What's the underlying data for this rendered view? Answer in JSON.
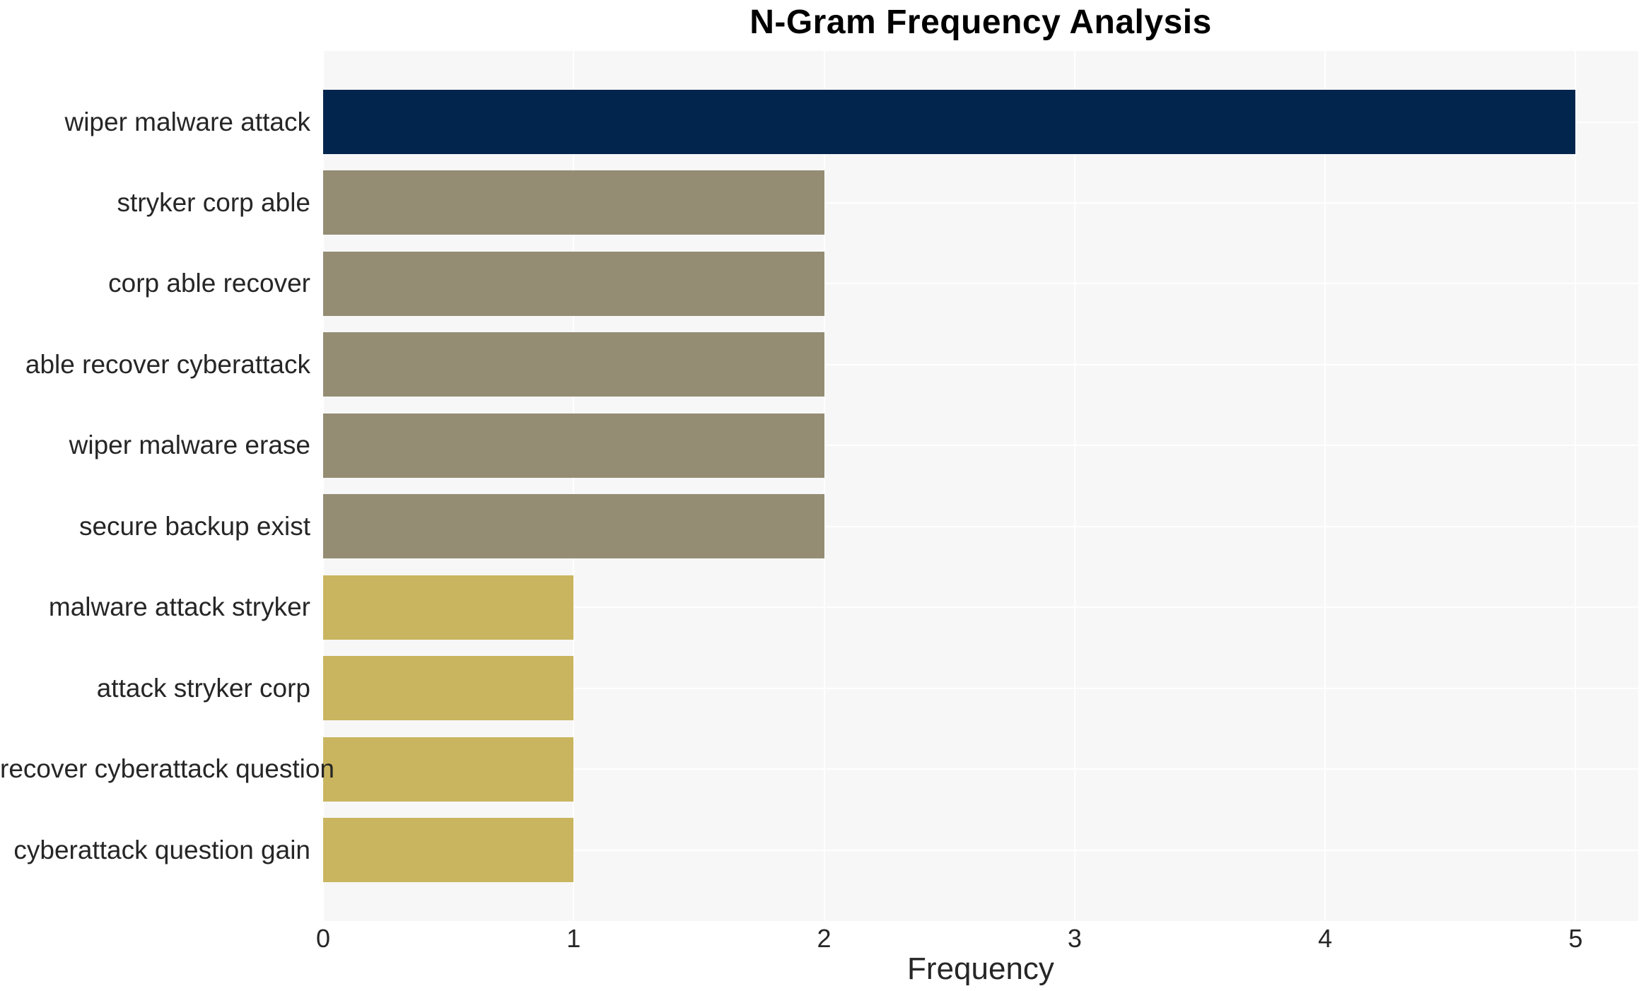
{
  "chart_data": {
    "type": "bar",
    "orientation": "horizontal",
    "title": "N-Gram Frequency Analysis",
    "xlabel": "Frequency",
    "ylabel": "",
    "categories": [
      "wiper malware attack",
      "stryker corp able",
      "corp able recover",
      "able recover cyberattack",
      "wiper malware erase",
      "secure backup exist",
      "malware attack stryker",
      "attack stryker corp",
      "recover cyberattack question",
      "cyberattack question gain"
    ],
    "values": [
      5,
      2,
      2,
      2,
      2,
      2,
      1,
      1,
      1,
      1
    ],
    "xlim": [
      0,
      5.25
    ],
    "xticks": [
      0,
      1,
      2,
      3,
      4,
      5
    ],
    "grid": true,
    "legend": false,
    "bar_colors": [
      "#02254E",
      "#948D74",
      "#948D74",
      "#948D74",
      "#948D74",
      "#948D74",
      "#C9B55F",
      "#C9B55F",
      "#C9B55F",
      "#C9B55F"
    ],
    "colors": {
      "plot_background": "#f7f7f7",
      "figure_background": "#ffffff",
      "gridline": "#ffffff",
      "text": "#262626",
      "title_text": "#000000"
    }
  }
}
